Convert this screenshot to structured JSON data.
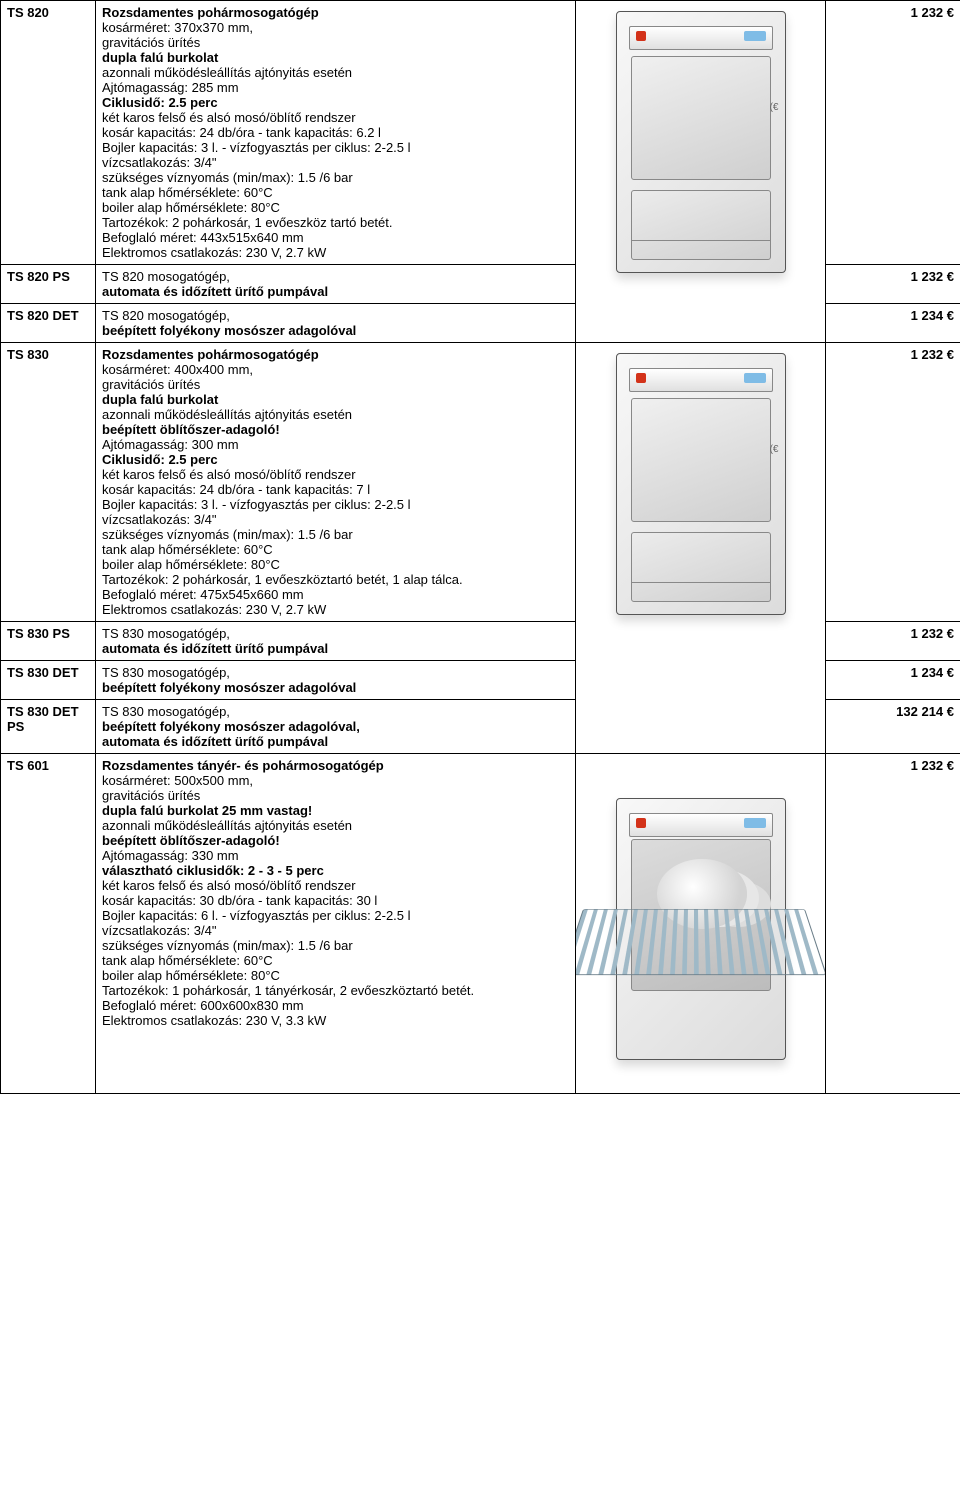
{
  "currency": "€",
  "rows": [
    {
      "code": "TS 820",
      "price": "1 232 €",
      "lines": [
        {
          "t": "Rozsdamentes pohármosogatógép",
          "b": true
        },
        {
          "t": "kosárméret: 370x370 mm,"
        },
        {
          "t": "gravitációs ürítés"
        },
        {
          "t": "dupla falú burkolat",
          "b": true
        },
        {
          "t": "azonnali működésleállítás ajtónyitás esetén"
        },
        {
          "t": "Ajtómagasság: 285 mm"
        },
        {
          "t": "Ciklusidő: 2.5 perc",
          "b": true
        },
        {
          "t": "két karos felső és alsó mosó/öblítő rendszer"
        },
        {
          "t": "kosár kapacitás: 24 db/óra - tank kapacitás: 6.2 l"
        },
        {
          "t": "Bojler kapacitás: 3 l. - vízfogyasztás per ciklus: 2-2.5 l"
        },
        {
          "t": "vízcsatlakozás: 3/4\""
        },
        {
          "t": "szükséges víznyomás (min/max): 1.5 /6 bar"
        },
        {
          "t": "tank alap hőmérséklete: 60°C"
        },
        {
          "t": "boiler alap hőmérséklete: 80°C"
        },
        {
          "t": "Tartozékok: 2 pohárkosár, 1 evőeszköz tartó betét."
        },
        {
          "t": "Befoglaló méret: 443x515x640 mm"
        },
        {
          "t": "Elektromos csatlakozás: 230 V, 2.7 kW"
        }
      ]
    },
    {
      "code": "TS 820 PS",
      "price": "1 232 €",
      "lines": [
        {
          "t": "TS 820 mosogatógép,"
        },
        {
          "t": "automata és időzített ürítő pumpával",
          "b": true
        }
      ]
    },
    {
      "code": "TS 820 DET",
      "price": "1 234 €",
      "lines": [
        {
          "t": "TS 820 mosogatógép,"
        },
        {
          "t": "beépített folyékony mosószer adagolóval",
          "b": true
        }
      ]
    },
    {
      "code": "TS 830",
      "price": "1 232 €",
      "lines": [
        {
          "t": "Rozsdamentes pohármosogatógép",
          "b": true
        },
        {
          "t": "kosárméret: 400x400 mm,"
        },
        {
          "t": "gravitációs ürítés"
        },
        {
          "t": "dupla falú burkolat",
          "b": true
        },
        {
          "t": "azonnali működésleállítás ajtónyitás esetén"
        },
        {
          "t": "beépített öblítőszer-adagoló!",
          "b": true
        },
        {
          "t": "Ajtómagasság: 300 mm"
        },
        {
          "t": "Ciklusidő: 2.5 perc",
          "b": true
        },
        {
          "t": "két karos felső és alsó mosó/öblítő rendszer"
        },
        {
          "t": "kosár kapacitás: 24 db/óra - tank kapacitás: 7 l"
        },
        {
          "t": "Bojler kapacitás: 3 l. - vízfogyasztás per ciklus: 2-2.5 l"
        },
        {
          "t": "vízcsatlakozás: 3/4\""
        },
        {
          "t": "szükséges víznyomás (min/max): 1.5 /6 bar"
        },
        {
          "t": "tank alap hőmérséklete: 60°C"
        },
        {
          "t": "boiler alap hőmérséklete: 80°C"
        },
        {
          "t": "Tartozékok: 2 pohárkosár, 1 evőeszköztartó betét, 1 alap tálca."
        },
        {
          "t": "Befoglaló méret: 475x545x660 mm"
        },
        {
          "t": "Elektromos csatlakozás: 230 V, 2.7 kW"
        }
      ]
    },
    {
      "code": "TS 830 PS",
      "price": "1 232 €",
      "lines": [
        {
          "t": "TS 830 mosogatógép,"
        },
        {
          "t": "automata és időzített ürítő pumpával",
          "b": true
        }
      ]
    },
    {
      "code": "TS 830 DET",
      "price": "1 234 €",
      "lines": [
        {
          "t": "TS 830 mosogatógép,"
        },
        {
          "t": "beépített folyékony mosószer adagolóval",
          "b": true
        }
      ]
    },
    {
      "code": "TS 830 DET PS",
      "price": "132 214 €",
      "lines": [
        {
          "t": "TS 830 mosogatógép,"
        },
        {
          "t": "beépített folyékony mosószer adagolóval,",
          "b": true
        },
        {
          "t": "automata és időzített ürítő pumpával",
          "b": true
        }
      ]
    },
    {
      "code": "TS 601",
      "price": "1 232 €",
      "lines": [
        {
          "t": "Rozsdamentes tányér- és pohármosogatógép",
          "b": true
        },
        {
          "t": "kosárméret: 500x500 mm,"
        },
        {
          "t": "gravitációs ürítés"
        },
        {
          "t": "dupla falú burkolat 25 mm vastag!",
          "b": true
        },
        {
          "t": "azonnali működésleállítás ajtónyitás esetén"
        },
        {
          "t": "beépített öblítőszer-adagoló!",
          "b": true
        },
        {
          "t": "Ajtómagasság: 330 mm"
        },
        {
          "t": "választható ciklusidők: 2 - 3 - 5 perc",
          "b": true
        },
        {
          "t": "két karos felső és alsó mosó/öblítő rendszer"
        },
        {
          "t": "kosár kapacitás: 30 db/óra - tank kapacitás: 30 l"
        },
        {
          "t": "Bojler kapacitás: 6 l. - vízfogyasztás per ciklus: 2-2.5 l"
        },
        {
          "t": "vízcsatlakozás: 3/4\""
        },
        {
          "t": "szükséges víznyomás (min/max): 1.5 /6 bar"
        },
        {
          "t": "tank alap hőmérséklete: 60°C"
        },
        {
          "t": "boiler alap hőmérséklete: 80°C"
        },
        {
          "t": "Tartozékok: 1 pohárkosár, 1 tányérkosár, 2 evőeszköztartó betét."
        },
        {
          "t": "Befoglaló méret: 600x600x830 mm"
        },
        {
          "t": "Elektromos csatlakozás: 230 V, 3.3 kW"
        }
      ]
    }
  ]
}
